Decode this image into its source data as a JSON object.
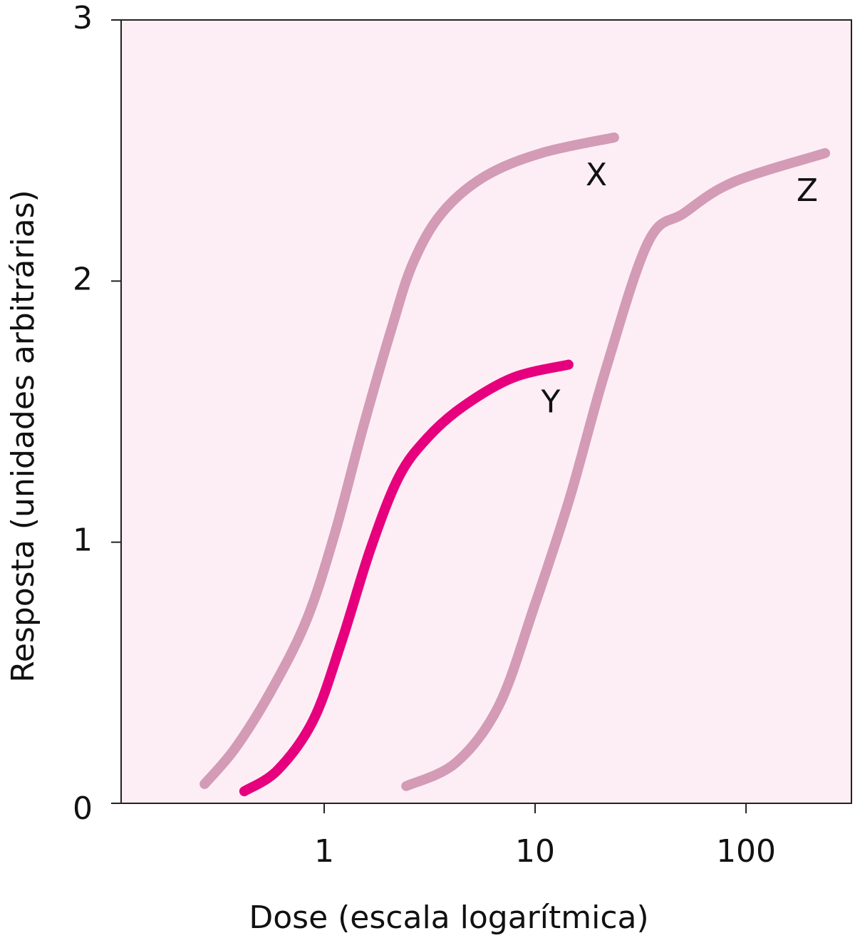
{
  "chart_data": {
    "type": "line",
    "xlabel": "Dose (escala logarítmica)",
    "ylabel": "Resposta (unidades arbitrárias)",
    "xscale": "log",
    "xlim": [
      0.109,
      316
    ],
    "xticks": [
      1,
      10,
      100
    ],
    "ylim": [
      0,
      3
    ],
    "yticks": [
      0,
      1,
      2,
      3
    ],
    "background": "#fdeef5",
    "series": [
      {
        "name": "X",
        "color": "#d39bb5",
        "x": [
          0.271,
          0.378,
          0.558,
          0.823,
          1.12,
          1.53,
          2.09,
          2.64,
          3.61,
          5.75,
          10.7,
          23.7
        ],
        "values": [
          0.074,
          0.21,
          0.428,
          0.7,
          1.03,
          1.44,
          1.82,
          2.07,
          2.26,
          2.4,
          2.49,
          2.55
        ]
      },
      {
        "name": "Y",
        "color": "#e6007e",
        "x": [
          0.418,
          0.603,
          0.89,
          1.21,
          1.66,
          2.26,
          3.09,
          4.56,
          7.86,
          14.4
        ],
        "values": [
          0.046,
          0.128,
          0.32,
          0.62,
          0.975,
          1.25,
          1.4,
          1.52,
          1.63,
          1.68
        ]
      },
      {
        "name": "Z",
        "color": "#d39bb5",
        "x": [
          2.45,
          4.22,
          6.73,
          9.93,
          14.6,
          21.6,
          34.4,
          50.8,
          87.6,
          237
        ],
        "values": [
          0.066,
          0.156,
          0.374,
          0.756,
          1.17,
          1.66,
          2.15,
          2.26,
          2.38,
          2.49
        ]
      }
    ]
  }
}
